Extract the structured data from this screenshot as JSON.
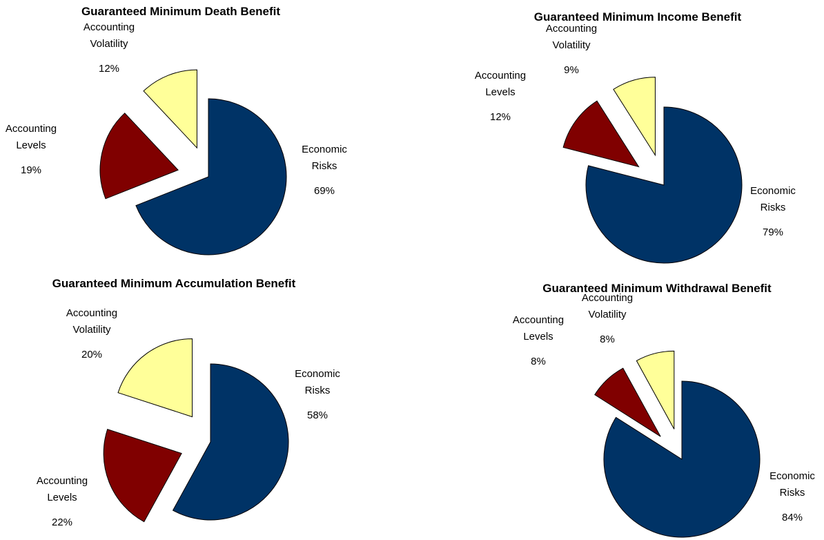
{
  "chart_data": [
    {
      "type": "pie",
      "title": "Guaranteed Minimum Death Benefit",
      "categories": [
        "Economic Risks",
        "Accounting Levels",
        "Accounting Volatility"
      ],
      "values": [
        69,
        19,
        12
      ],
      "value_labels": [
        "69%",
        "19%",
        "12%"
      ],
      "colors": [
        "#003366",
        "#800000",
        "#ffff99"
      ]
    },
    {
      "type": "pie",
      "title": "Guaranteed Minimum Income Benefit",
      "categories": [
        "Economic Risks",
        "Accounting Levels",
        "Accounting Volatility"
      ],
      "values": [
        79,
        12,
        9
      ],
      "value_labels": [
        "79%",
        "12%",
        "9%"
      ],
      "colors": [
        "#003366",
        "#800000",
        "#ffff99"
      ]
    },
    {
      "type": "pie",
      "title": "Guaranteed Minimum Accumulation Benefit",
      "categories": [
        "Economic Risks",
        "Accounting Levels",
        "Accounting Volatility"
      ],
      "values": [
        58,
        22,
        20
      ],
      "value_labels": [
        "58%",
        "22%",
        "20%"
      ],
      "colors": [
        "#003366",
        "#800000",
        "#ffff99"
      ]
    },
    {
      "type": "pie",
      "title": "Guaranteed Minimum Withdrawal Benefit",
      "categories": [
        "Economic Risks",
        "Accounting Levels",
        "Accounting Volatility"
      ],
      "values": [
        84,
        8,
        8
      ],
      "value_labels": [
        "84%",
        "8%",
        "8%"
      ],
      "colors": [
        "#003366",
        "#800000",
        "#ffff99"
      ]
    }
  ]
}
